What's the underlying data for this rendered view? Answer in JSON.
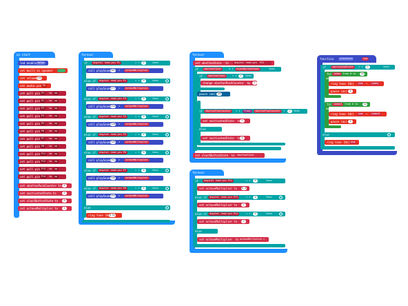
{
  "colors": {
    "event": "#1e90ff",
    "logic": "#00a4a6",
    "logic_dark": "#007b7d",
    "pins": "#b8203a",
    "variables": "#d32f4a",
    "functions": "#3a4ac6",
    "music": "#e63022",
    "math": "#9c2a7a",
    "toggle": "#3cb371"
  },
  "on_start": {
    "header": "on start",
    "led_enable": "led enable",
    "led_value": "false",
    "builtin_speaker": "set built-in speaker",
    "set_volume": "set volume",
    "volume_value": "255",
    "set_audio_pin": "set audio pin",
    "audio_pin": "P0",
    "pull_pins": [
      "P1",
      "P2",
      "P3",
      "P4",
      "P5",
      "P6",
      "P7",
      "P8",
      "P11",
      "P12",
      "P13",
      "P14"
    ],
    "set_pull_pin": "set pull pin",
    "to": "to",
    "up": "up",
    "vars": [
      {
        "label": "set vbuttonPushCounter",
        "value": "0"
      },
      {
        "label": "set vactivatedState",
        "value": "0"
      },
      {
        "label": "set vlastButtonState",
        "value": "0"
      },
      {
        "label": "set octaveMultiplier",
        "value": "1"
      }
    ]
  },
  "forever1": {
    "header": "forever",
    "if": "if",
    "else_if": "else if",
    "else": "else",
    "then": "then",
    "digital_read": "digital read pin",
    "eq": "= ▾",
    "call": "call playSound",
    "times": "×",
    "octave": "octaveMultiplier",
    "branches": [
      {
        "pin": "P1",
        "value": "0",
        "sound": "262"
      },
      {
        "pin": "P2",
        "value": "0",
        "sound": "277"
      },
      {
        "pin": "P3",
        "value": "0",
        "sound": "294"
      },
      {
        "pin": "P4",
        "value": "0",
        "sound": "330"
      },
      {
        "pin": "P5",
        "value": "0",
        "sound": "349"
      },
      {
        "pin": "P6",
        "value": "0",
        "sound": "392"
      },
      {
        "pin": "P7",
        "value": "0",
        "sound": "440"
      },
      {
        "pin": "P8",
        "value": "0",
        "sound": "494"
      }
    ],
    "ring_tone": "ring tone (Hz)",
    "ring_value": "0 Hz"
  },
  "forever2": {
    "header": "forever",
    "set_vbutton": "set vbuttonState",
    "to": "to",
    "digital_read": "digital read pin",
    "pin": "P13",
    "if": "if",
    "then": "then",
    "else": "else",
    "vbutton": "vbuttonState",
    "neq": "≠ ▾",
    "vlast": "vlastButtonState",
    "eq": "= ▾",
    "one": "1",
    "change": "change vbuttonPushCounter",
    "by": "by",
    "pause": "pause (ms)",
    "pause_value": "100",
    "vpush": "vbuttonPushCounter",
    "mod": "÷",
    "floor": "floor",
    "two": "2",
    "set_activated": "set vactivatedState",
    "zero": "0",
    "set_last": "set vlastButtonState"
  },
  "forever3": {
    "header": "forever",
    "if": "if",
    "else_if": "else if",
    "else": "else",
    "then": "then",
    "digital_read": "digital read pin",
    "set_octave": "set octaveMultiplier",
    "to": "to",
    "eq": "= ▾",
    "branches": [
      {
        "pin": "P12",
        "cmp": "0",
        "value": "0.5"
      },
      {
        "pin": "P13",
        "cmp": "0",
        "value": "1"
      },
      {
        "pin": "P14",
        "cmp": "0",
        "value": "2"
      }
    ],
    "else_value": "octaveMultiplier",
    "times": "×"
  },
  "function": {
    "keyword": "function",
    "name": "playSound",
    "param": "num",
    "if": "if",
    "then": "then",
    "else": "else",
    "do": "do",
    "vactivated": "vactivatedState",
    "eq": "= ▾",
    "one": "1",
    "for": "for",
    "index": "index",
    "index2": "index2",
    "from": "from 0 to",
    "to_value": "10",
    "ring": "ring tone (Hz)",
    "num": "num",
    "plus": "+",
    "pause": "pause (ms)",
    "pause_value": "5"
  }
}
